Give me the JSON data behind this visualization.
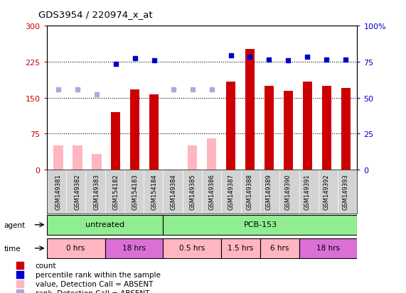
{
  "title": "GDS3954 / 220974_x_at",
  "samples": [
    "GSM149381",
    "GSM149382",
    "GSM149383",
    "GSM154182",
    "GSM154183",
    "GSM154184",
    "GSM149384",
    "GSM149385",
    "GSM149386",
    "GSM149387",
    "GSM149388",
    "GSM149389",
    "GSM149390",
    "GSM149391",
    "GSM149392",
    "GSM149393"
  ],
  "count_values": [
    null,
    null,
    null,
    120,
    168,
    157,
    null,
    null,
    null,
    183,
    252,
    175,
    165,
    183,
    175,
    170
  ],
  "count_absent": [
    50,
    50,
    33,
    null,
    null,
    null,
    null,
    50,
    65,
    null,
    null,
    null,
    null,
    null,
    null,
    null
  ],
  "rank_values": [
    null,
    null,
    null,
    220,
    233,
    228,
    null,
    null,
    null,
    238,
    235,
    230,
    228,
    235,
    230,
    230
  ],
  "rank_absent": [
    168,
    167,
    157,
    null,
    null,
    null,
    168,
    167,
    167,
    null,
    null,
    null,
    null,
    null,
    null,
    null
  ],
  "ylim_left": [
    0,
    300
  ],
  "ylim_right": [
    0,
    100
  ],
  "yticks_left": [
    0,
    75,
    150,
    225,
    300
  ],
  "yticks_right": [
    0,
    25,
    50,
    75,
    100
  ],
  "grid_lines": [
    75,
    150,
    225
  ],
  "agent_groups": [
    {
      "label": "untreated",
      "start": 0,
      "end": 6,
      "color": "#90EE90"
    },
    {
      "label": "PCB-153",
      "start": 6,
      "end": 16,
      "color": "#90EE90"
    }
  ],
  "time_groups": [
    {
      "label": "0 hrs",
      "start": 0,
      "end": 3,
      "color": "#FFB6C1"
    },
    {
      "label": "18 hrs",
      "start": 3,
      "end": 6,
      "color": "#DA70D6"
    },
    {
      "label": "0.5 hrs",
      "start": 6,
      "end": 9,
      "color": "#FFB6C1"
    },
    {
      "label": "1.5 hrs",
      "start": 9,
      "end": 11,
      "color": "#FFB6C1"
    },
    {
      "label": "6 hrs",
      "start": 11,
      "end": 13,
      "color": "#FFB6C1"
    },
    {
      "label": "18 hrs",
      "start": 13,
      "end": 16,
      "color": "#DA70D6"
    }
  ],
  "bar_color": "#CC0000",
  "bar_absent_color": "#FFB6C1",
  "dot_color": "#0000CC",
  "dot_absent_color": "#AAAADD",
  "bg_color": "#D3D3D3",
  "plot_bg": "#FFFFFF",
  "left_axis_color": "#CC0000",
  "right_axis_color": "#0000CC",
  "fig_width": 5.71,
  "fig_height": 4.14,
  "dpi": 100
}
